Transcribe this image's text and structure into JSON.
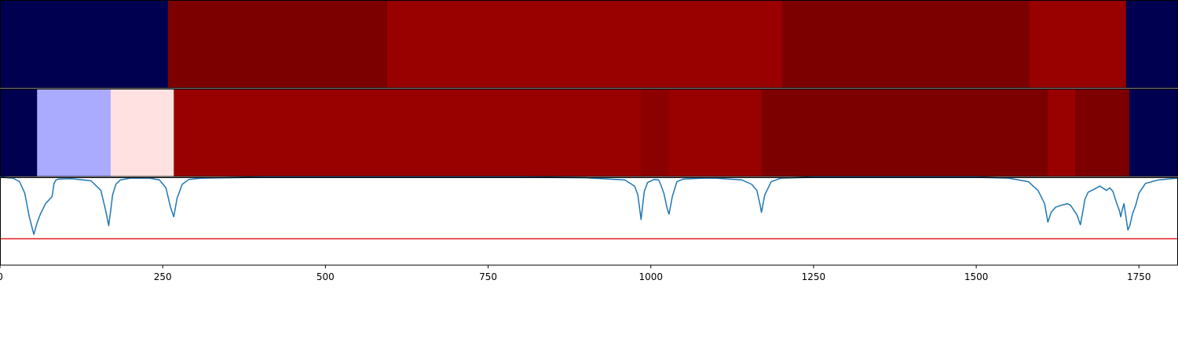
{
  "chart_data": {
    "type": "heatmap",
    "xlim": [
      0,
      1810
    ],
    "x_ticks": [
      "0",
      "250",
      "500",
      "750",
      "1000",
      "1250",
      "1500",
      "1750"
    ],
    "x_tick_values": [
      0,
      250,
      500,
      750,
      1000,
      1250,
      1500,
      1750
    ],
    "grid": false,
    "panels": [
      {
        "kind": "segments",
        "segments": [
          {
            "start": 0,
            "end": 258,
            "color": "#000050"
          },
          {
            "start": 258,
            "end": 595,
            "color": "#7d0000"
          },
          {
            "start": 595,
            "end": 1202,
            "color": "#990000"
          },
          {
            "start": 1202,
            "end": 1582,
            "color": "#7d0000"
          },
          {
            "start": 1582,
            "end": 1730,
            "color": "#990000"
          },
          {
            "start": 1730,
            "end": 1810,
            "color": "#000050"
          }
        ]
      },
      {
        "kind": "segments",
        "segments": [
          {
            "start": 0,
            "end": 57,
            "color": "#000050"
          },
          {
            "start": 57,
            "end": 170,
            "color": "#aaaaff"
          },
          {
            "start": 170,
            "end": 267,
            "color": "#ffe1e1"
          },
          {
            "start": 267,
            "end": 985,
            "color": "#990000"
          },
          {
            "start": 985,
            "end": 1028,
            "color": "#8b0000"
          },
          {
            "start": 1028,
            "end": 1170,
            "color": "#990000"
          },
          {
            "start": 1170,
            "end": 1610,
            "color": "#7d0000"
          },
          {
            "start": 1610,
            "end": 1652,
            "color": "#990000"
          },
          {
            "start": 1652,
            "end": 1735,
            "color": "#7d0000"
          },
          {
            "start": 1735,
            "end": 1810,
            "color": "#000050"
          }
        ]
      },
      {
        "kind": "line",
        "ylim": [
          0,
          1
        ],
        "threshold": 0.3,
        "line_color": "#1f77b4",
        "threshold_color": "#e41a1c",
        "x": [
          0,
          20,
          30,
          38,
          45,
          52,
          57,
          62,
          70,
          80,
          83,
          86,
          90,
          110,
          140,
          155,
          163,
          167,
          170,
          173,
          178,
          185,
          200,
          230,
          245,
          255,
          262,
          267,
          272,
          280,
          290,
          310,
          400,
          600,
          800,
          900,
          960,
          975,
          980,
          985,
          990,
          995,
          1005,
          1012,
          1015,
          1020,
          1025,
          1028,
          1033,
          1040,
          1050,
          1080,
          1100,
          1140,
          1155,
          1163,
          1168,
          1170,
          1175,
          1185,
          1200,
          1250,
          1400,
          1500,
          1550,
          1580,
          1595,
          1605,
          1610,
          1615,
          1622,
          1630,
          1640,
          1645,
          1655,
          1660,
          1663,
          1667,
          1672,
          1680,
          1690,
          1700,
          1705,
          1710,
          1715,
          1720,
          1722,
          1724,
          1727,
          1733,
          1736,
          1740,
          1745,
          1750,
          1760,
          1780,
          1800,
          1810
        ],
        "y": [
          1.0,
          0.99,
          0.95,
          0.82,
          0.55,
          0.35,
          0.48,
          0.58,
          0.7,
          0.78,
          0.93,
          0.97,
          0.98,
          0.985,
          0.96,
          0.85,
          0.6,
          0.45,
          0.62,
          0.8,
          0.92,
          0.97,
          0.99,
          0.99,
          0.97,
          0.88,
          0.66,
          0.55,
          0.76,
          0.92,
          0.975,
          0.99,
          1.0,
          1.0,
          1.0,
          0.995,
          0.97,
          0.9,
          0.8,
          0.52,
          0.84,
          0.94,
          0.975,
          0.97,
          0.92,
          0.82,
          0.65,
          0.58,
          0.78,
          0.95,
          0.98,
          0.99,
          0.99,
          0.97,
          0.92,
          0.85,
          0.68,
          0.6,
          0.8,
          0.95,
          0.99,
          1.0,
          1.0,
          1.0,
          0.99,
          0.95,
          0.85,
          0.7,
          0.49,
          0.6,
          0.66,
          0.68,
          0.7,
          0.68,
          0.57,
          0.46,
          0.58,
          0.75,
          0.83,
          0.86,
          0.9,
          0.85,
          0.88,
          0.84,
          0.72,
          0.62,
          0.55,
          0.62,
          0.7,
          0.4,
          0.45,
          0.58,
          0.68,
          0.82,
          0.93,
          0.97,
          0.985,
          0.99
        ]
      }
    ]
  }
}
